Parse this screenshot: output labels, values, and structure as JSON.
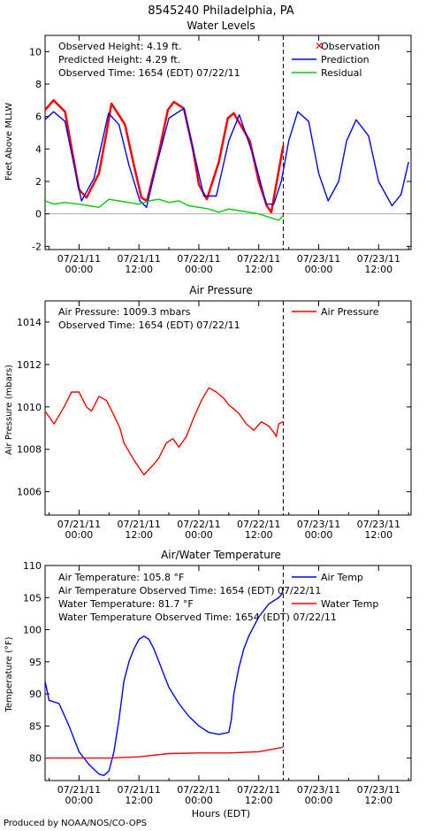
{
  "header": {
    "station": "8545240 Philadelphia, PA"
  },
  "footer": {
    "credit": "Produced by NOAA/NOS/CO-OPS",
    "xlabel": "Hours (EDT)"
  },
  "x_ticks": [
    {
      "d": "07/21/11",
      "t": "00:00",
      "h": 0
    },
    {
      "d": "07/21/11",
      "t": "12:00",
      "h": 12
    },
    {
      "d": "07/22/11",
      "t": "00:00",
      "h": 24
    },
    {
      "d": "07/22/11",
      "t": "12:00",
      "h": 36
    },
    {
      "d": "07/23/11",
      "t": "00:00",
      "h": 48
    },
    {
      "d": "07/23/11",
      "t": "12:00",
      "h": 60
    }
  ],
  "now_hours": 40.9,
  "colors": {
    "observation": "#ff0000",
    "prediction": "#0000ff",
    "residual": "#00cc00",
    "air_pressure": "#ff0000",
    "air_temp": "#0000ff",
    "water_temp": "#ff0000"
  },
  "chart_data": [
    {
      "type": "line",
      "title": "Water Levels",
      "ylabel": "Feet Above MLLW",
      "ylim": [
        -2.2,
        11
      ],
      "xlim_hours": [
        -6.8,
        66.5
      ],
      "yticks": [
        -2,
        0,
        2,
        4,
        6,
        8,
        10
      ],
      "info": [
        "Observed Height:   4.19 ft.",
        "Predicted Height:   4.29 ft.",
        "Observed Time: 1654 (EDT) 07/22/11"
      ],
      "legend": [
        "Observation",
        "Prediction",
        "Residual"
      ],
      "series": [
        {
          "name": "Observation",
          "x": [
            -6.8,
            -5.1,
            -2.8,
            -1,
            0,
            1.5,
            4,
            5.5,
            6.5,
            9.2,
            11,
            12.5,
            13.6,
            16,
            17.8,
            19,
            21,
            22.8,
            24,
            25.6,
            28,
            29.8,
            31,
            34.2,
            36,
            37.6,
            38.5,
            40.9
          ],
          "y": [
            6.4,
            7,
            6.3,
            3.2,
            1.5,
            1,
            2.5,
            5,
            6.8,
            5.5,
            3,
            1,
            0.8,
            3.8,
            6.4,
            6.9,
            6.5,
            4,
            1.8,
            0.9,
            3.2,
            5.9,
            6.2,
            4.5,
            2,
            0.5,
            0.1,
            4.2
          ]
        },
        {
          "name": "Prediction",
          "x": [
            -6.8,
            -5.1,
            -2.8,
            -1,
            0.5,
            3,
            5.9,
            8,
            10,
            12.2,
            13.5,
            15.5,
            18,
            21,
            23,
            25,
            27.5,
            30,
            32.1,
            35,
            37.5,
            39,
            40.5,
            42,
            43.8,
            46,
            48,
            49.9,
            52,
            53.6,
            55.5,
            58,
            60,
            62.7,
            64.5,
            66
          ],
          "y": [
            5.8,
            6.3,
            5.7,
            3,
            0.8,
            2.2,
            6.2,
            5.5,
            3,
            0.8,
            0.4,
            3,
            5.9,
            6.5,
            3.8,
            1.1,
            1.1,
            4.5,
            6.1,
            3.5,
            0.6,
            0.6,
            2,
            4.5,
            6.3,
            5.7,
            2.5,
            0.8,
            2,
            4.5,
            5.8,
            4.8,
            2,
            0.5,
            1.2,
            3.2
          ]
        },
        {
          "name": "Residual",
          "x": [
            -6.8,
            -5,
            -3,
            0,
            2,
            4,
            6,
            8,
            10,
            12,
            14,
            16,
            18,
            20,
            22,
            24,
            26,
            28,
            30,
            32,
            34,
            36,
            38,
            40,
            40.9
          ],
          "y": [
            0.8,
            0.6,
            0.7,
            0.6,
            0.5,
            0.4,
            0.9,
            0.8,
            0.7,
            0.6,
            0.8,
            0.9,
            0.7,
            0.8,
            0.5,
            0.4,
            0.3,
            0.1,
            0.3,
            0.2,
            0.1,
            0,
            -0.2,
            -0.4,
            -0.1
          ]
        }
      ]
    },
    {
      "type": "line",
      "title": "Air Pressure",
      "ylabel": "Air Pressure (mbars)",
      "ylim": [
        1004.9,
        1015
      ],
      "xlim_hours": [
        -6.8,
        66.5
      ],
      "yticks": [
        1006,
        1008,
        1010,
        1012,
        1014
      ],
      "info": [
        "Air Pressure: 1009.3 mbars",
        "Observed Time: 1654 (EDT) 07/22/11"
      ],
      "legend": [
        "Air Pressure"
      ],
      "series": [
        {
          "name": "Air Pressure",
          "x": [
            -6.8,
            -5,
            -4.5,
            -3,
            -1.5,
            0,
            1.5,
            2.5,
            4,
            5.5,
            7,
            8.2,
            9,
            11,
            13,
            15,
            16,
            17.5,
            18.8,
            20,
            21.5,
            23,
            24.5,
            26,
            27.5,
            29,
            30,
            31,
            32,
            33.5,
            35,
            36.5,
            38,
            39,
            39.5,
            40,
            40.9
          ],
          "y": [
            1009.8,
            1009.2,
            1009.4,
            1010,
            1010.7,
            1010.7,
            1010,
            1009.8,
            1010.5,
            1010.3,
            1009.6,
            1009,
            1008.3,
            1007.5,
            1006.8,
            1007.3,
            1007.6,
            1008.3,
            1008.5,
            1008.1,
            1008.6,
            1009.5,
            1010.3,
            1010.9,
            1010.7,
            1010.4,
            1010.1,
            1009.9,
            1009.7,
            1009.2,
            1008.9,
            1009.3,
            1009.1,
            1008.8,
            1008.6,
            1009.2,
            1009.3
          ]
        }
      ]
    },
    {
      "type": "line",
      "title": "Air/Water Temperature",
      "ylabel": "Temperature (°F)",
      "ylim": [
        76.5,
        110
      ],
      "xlim_hours": [
        -6.8,
        66.5
      ],
      "yticks": [
        80,
        85,
        90,
        95,
        100,
        105,
        110
      ],
      "info": [
        "Air Temperature: 105.8 °F",
        "Air Temperature Observed Time: 1654 (EDT) 07/22/11",
        "Water Temperature:   81.7 °F",
        "Water Temperature Observed Time: 1654 (EDT) 07/22/11"
      ],
      "legend": [
        "Air Temp",
        "Water Temp"
      ],
      "series": [
        {
          "name": "Air Temp",
          "x": [
            -6.8,
            -6,
            -4,
            -2,
            0,
            2,
            4,
            5,
            6,
            7,
            8,
            9,
            10,
            11,
            12,
            13,
            14,
            15,
            16,
            17,
            18,
            20,
            22,
            24,
            26,
            28,
            30,
            30.5,
            31,
            32,
            33,
            34,
            35,
            36,
            37,
            38,
            39,
            40,
            40.9
          ],
          "y": [
            92,
            89,
            88.5,
            85,
            81,
            79,
            77.5,
            77.3,
            78,
            81,
            86,
            92,
            95,
            97,
            98.5,
            99,
            98.5,
            97,
            95,
            93,
            91,
            88.5,
            86.5,
            85,
            84,
            83.7,
            84,
            86,
            90,
            94,
            97,
            99,
            100.5,
            102,
            103,
            104,
            104.5,
            105,
            105.8
          ]
        },
        {
          "name": "Water Temp",
          "x": [
            -6.8,
            0,
            6,
            12,
            18,
            24,
            30,
            36,
            40.9
          ],
          "y": [
            80,
            80,
            80,
            80.2,
            80.7,
            80.8,
            80.8,
            81,
            81.7
          ]
        }
      ]
    }
  ]
}
